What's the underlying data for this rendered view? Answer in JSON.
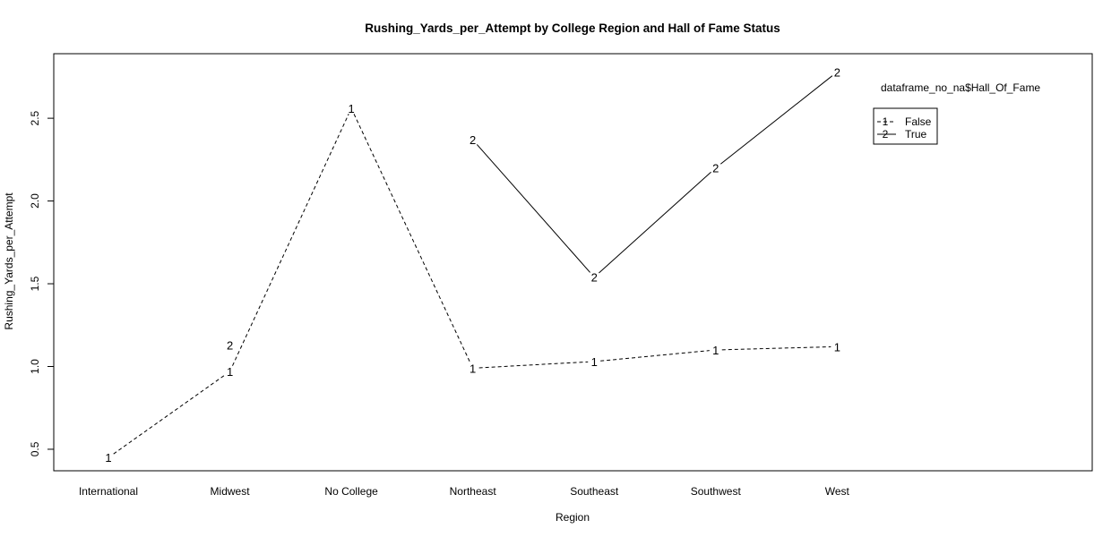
{
  "chart_data": {
    "type": "line",
    "title": "Rushing_Yards_per_Attempt by College Region and Hall of Fame Status",
    "xlabel": "Region",
    "ylabel": "Rushing_Yards_per_Attempt",
    "categories": [
      "International",
      "Midwest",
      "No College",
      "Northeast",
      "Southeast",
      "Southwest",
      "West"
    ],
    "yticks": [
      "0.5",
      "1.0",
      "1.5",
      "2.0",
      "2.5"
    ],
    "ylim": [
      0.37,
      2.89
    ],
    "xlim": [
      0.55,
      9.1
    ],
    "grid": false,
    "legend": {
      "title": "dataframe_no_na$Hall_Of_Fame",
      "position": "top-right"
    },
    "series": [
      {
        "name": "False",
        "marker": "1",
        "linestyle": "dashed",
        "values": [
          0.45,
          0.97,
          2.56,
          0.99,
          1.03,
          1.1,
          1.12
        ]
      },
      {
        "name": "True",
        "marker": "2",
        "linestyle": "solid",
        "values": [
          null,
          1.13,
          null,
          2.37,
          1.54,
          2.2,
          2.78
        ]
      }
    ],
    "colors": {
      "line": "#000000",
      "background": "#ffffff"
    }
  }
}
